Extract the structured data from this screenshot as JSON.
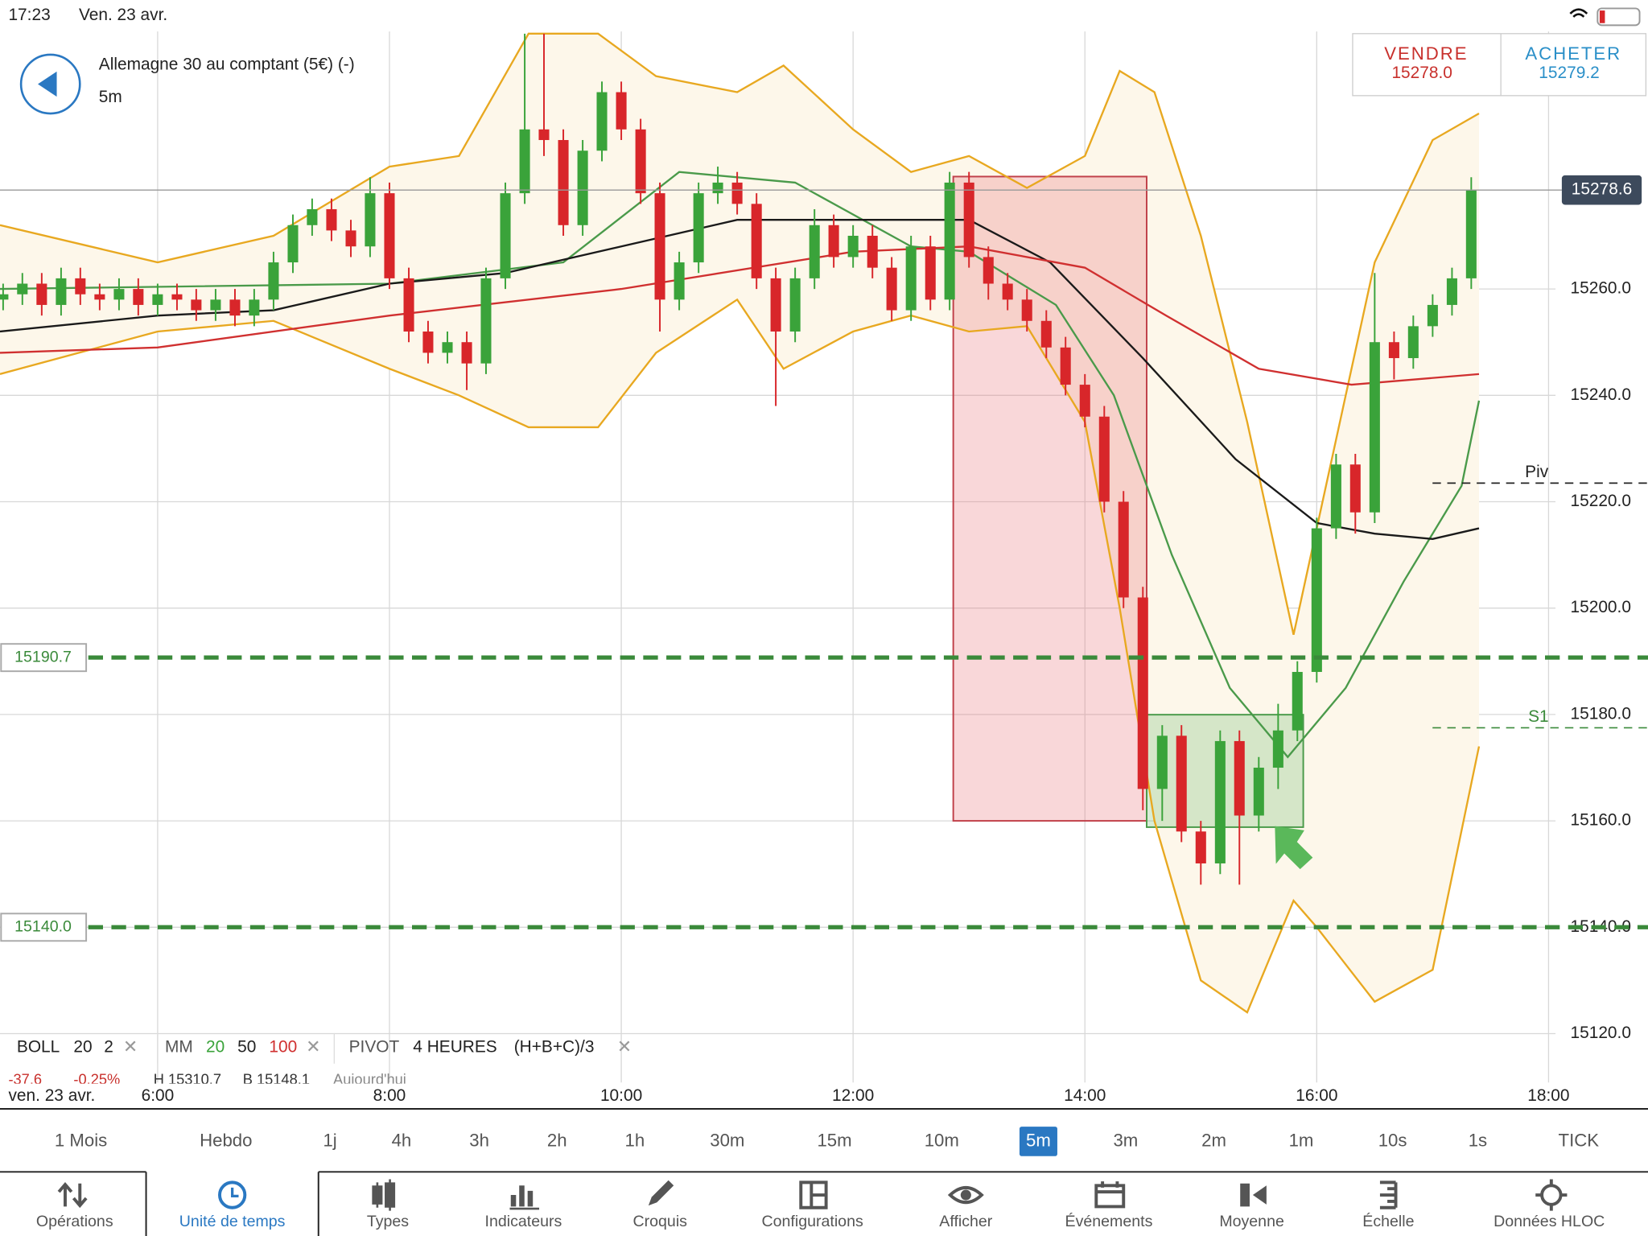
{
  "status_bar": {
    "time": "17:23",
    "date": "Ven. 23 avr."
  },
  "header": {
    "instrument": "Allemagne 30 au comptant (5€) (-)",
    "timeframe": "5m"
  },
  "quote": {
    "sell_label": "VENDRE",
    "sell_price": "15278.0",
    "buy_label": "ACHETER",
    "buy_price": "15279.2"
  },
  "chart_data": {
    "type": "candlestick",
    "x": [
      4.667,
      4.833,
      5,
      5.167,
      5.333,
      5.5,
      5.667,
      5.833,
      6,
      6.167,
      6.333,
      6.5,
      6.667,
      6.833,
      7,
      7.167,
      7.333,
      7.5,
      7.667,
      7.833,
      8,
      8.167,
      8.333,
      8.5,
      8.667,
      8.833,
      9,
      9.167,
      9.333,
      9.5,
      9.667,
      9.833,
      10,
      10.167,
      10.333,
      10.5,
      10.667,
      10.833,
      11,
      11.167,
      11.333,
      11.5,
      11.667,
      11.833,
      12,
      12.167,
      12.333,
      12.5,
      12.667,
      12.833,
      13,
      13.167,
      13.333,
      13.5,
      13.667,
      13.833,
      14,
      14.167,
      14.333,
      14.5,
      14.667,
      14.833,
      15,
      15.167,
      15.333,
      15.5,
      15.667,
      15.833,
      16,
      16.167,
      16.333,
      16.5,
      16.667,
      16.833,
      17,
      17.167,
      17.333
    ],
    "open": [
      15258,
      15259,
      15261,
      15257,
      15262,
      15259,
      15258,
      15260,
      15257,
      15259,
      15258,
      15256,
      15258,
      15255,
      15258,
      15265,
      15272,
      15275,
      15271,
      15268,
      15278,
      15262,
      15252,
      15248,
      15250,
      15246,
      15262,
      15278,
      15290,
      15288,
      15272,
      15286,
      15297,
      15290,
      15278,
      15258,
      15265,
      15278,
      15280,
      15276,
      15262,
      15252,
      15262,
      15272,
      15266,
      15270,
      15264,
      15256,
      15268,
      15258,
      15280,
      15266,
      15261,
      15258,
      15254,
      15249,
      15242,
      15236,
      15220,
      15202,
      15166,
      15176,
      15158,
      15152,
      15175,
      15161,
      15170,
      15177,
      15188,
      15215,
      15227,
      15218,
      15250,
      15247,
      15253,
      15257,
      15262
    ],
    "high": [
      15261,
      15263,
      15263,
      15264,
      15264,
      15261,
      15262,
      15262,
      15261,
      15261,
      15260,
      15260,
      15260,
      15260,
      15267,
      15274,
      15277,
      15277,
      15273,
      15281,
      15280,
      15264,
      15254,
      15252,
      15252,
      15264,
      15280,
      15308,
      15308,
      15290,
      15288,
      15299,
      15299,
      15292,
      15280,
      15267,
      15280,
      15283,
      15282,
      15278,
      15264,
      15264,
      15275,
      15274,
      15272,
      15272,
      15266,
      15270,
      15270,
      15282,
      15282,
      15268,
      15263,
      15260,
      15256,
      15251,
      15244,
      15238,
      15222,
      15204,
      15178,
      15178,
      15160,
      15177,
      15177,
      15172,
      15182,
      15190,
      15217,
      15229,
      15229,
      15263,
      15252,
      15255,
      15259,
      15264,
      15281
    ],
    "low": [
      15256,
      15257,
      15255,
      15255,
      15257,
      15256,
      15256,
      15255,
      15255,
      15256,
      15254,
      15254,
      15253,
      15253,
      15256,
      15263,
      15270,
      15269,
      15266,
      15266,
      15260,
      15250,
      15246,
      15246,
      15241,
      15244,
      15260,
      15276,
      15285,
      15270,
      15270,
      15284,
      15288,
      15276,
      15252,
      15256,
      15263,
      15276,
      15274,
      15260,
      15238,
      15250,
      15260,
      15264,
      15264,
      15262,
      15254,
      15254,
      15256,
      15256,
      15264,
      15258,
      15256,
      15252,
      15247,
      15240,
      15234,
      15218,
      15200,
      15162,
      15160,
      15156,
      15148,
      15150,
      15148,
      15158,
      15166,
      15175,
      15186,
      15213,
      15214,
      15216,
      15243,
      15245,
      15251,
      15255,
      15260
    ],
    "close": [
      15259,
      15261,
      15257,
      15262,
      15259,
      15258,
      15260,
      15257,
      15259,
      15258,
      15256,
      15258,
      15255,
      15258,
      15265,
      15272,
      15275,
      15271,
      15268,
      15278,
      15262,
      15252,
      15248,
      15250,
      15246,
      15262,
      15278,
      15290,
      15288,
      15272,
      15286,
      15297,
      15290,
      15278,
      15258,
      15265,
      15278,
      15280,
      15276,
      15262,
      15252,
      15262,
      15272,
      15266,
      15270,
      15264,
      15256,
      15268,
      15258,
      15280,
      15266,
      15261,
      15258,
      15254,
      15249,
      15242,
      15236,
      15220,
      15202,
      15166,
      15176,
      15158,
      15152,
      15175,
      15161,
      15170,
      15177,
      15188,
      15215,
      15227,
      15218,
      15250,
      15247,
      15253,
      15257,
      15262,
      15278.6
    ],
    "colors": {
      "up": "#3aa33a",
      "down": "#d8262a"
    },
    "xlim": [
      4.64,
      18.06
    ],
    "xticks": [
      {
        "value": 6,
        "label": "6:00"
      },
      {
        "value": 8,
        "label": "8:00"
      },
      {
        "value": 10,
        "label": "10:00"
      },
      {
        "value": 12,
        "label": "12:00"
      },
      {
        "value": 14,
        "label": "14:00"
      },
      {
        "value": 16,
        "label": "16:00"
      },
      {
        "value": 18,
        "label": "18:00"
      }
    ],
    "ylim": [
      15110.8,
      15308.4
    ],
    "yticks": [
      {
        "value": 15120,
        "label": "15120.0"
      },
      {
        "value": 15140,
        "label": "15140.0"
      },
      {
        "value": 15160,
        "label": "15160.0"
      },
      {
        "value": 15180,
        "label": "15180.0"
      },
      {
        "value": 15200,
        "label": "15200.0"
      },
      {
        "value": 15220,
        "label": "15220.0"
      },
      {
        "value": 15240,
        "label": "15240.0"
      },
      {
        "value": 15260,
        "label": "15260.0"
      }
    ],
    "grid": true,
    "bollinger": {
      "period": 20,
      "deviation": 2,
      "color": "#e8a820",
      "fill": "#fdf7ea",
      "x": [
        4.64,
        6,
        7,
        8,
        8.6,
        9.2,
        9.8,
        10.3,
        11,
        11.4,
        12,
        12.5,
        13,
        13.5,
        14,
        14.3,
        14.6,
        15,
        15.4,
        15.8,
        16,
        16.5,
        17,
        17.4
      ],
      "upper": [
        15272,
        15265,
        15270,
        15283,
        15285,
        15308,
        15308,
        15300,
        15297,
        15302,
        15290,
        15282,
        15285,
        15279,
        15285,
        15301,
        15297,
        15270,
        15235,
        15195,
        15215,
        15265,
        15288,
        15293
      ],
      "lower": [
        15244,
        15252,
        15254,
        15245,
        15240,
        15234,
        15234,
        15248,
        15258,
        15245,
        15252,
        15255,
        15252,
        15253,
        15235,
        15200,
        15160,
        15130,
        15124,
        15145,
        15140,
        15126,
        15132,
        15174
      ]
    },
    "moving_averages": [
      {
        "period": 20,
        "color": "#4a9a4a",
        "x": [
          4.64,
          8,
          9.5,
          10.5,
          11.5,
          12.5,
          13,
          13.75,
          14.25,
          14.75,
          15.25,
          15.75,
          16.25,
          16.75,
          17.25,
          17.4
        ],
        "values": [
          15260,
          15261,
          15265,
          15282,
          15280,
          15268,
          15267,
          15257,
          15240,
          15210,
          15185,
          15172,
          15185,
          15205,
          15223,
          15239
        ]
      },
      {
        "period": 50,
        "color": "#1a1a1a",
        "x": [
          4.64,
          6,
          7,
          8,
          9,
          10,
          11,
          12,
          13,
          13.7,
          14.5,
          15.3,
          16,
          16.5,
          17,
          17.4
        ],
        "values": [
          15252,
          15255,
          15256,
          15261,
          15263,
          15268,
          15273,
          15273,
          15273,
          15265,
          15247,
          15228,
          15216,
          15214,
          15213,
          15215
        ]
      },
      {
        "period": 100,
        "color": "#d03030",
        "x": [
          4.64,
          6,
          8,
          10,
          12,
          13,
          14,
          14.7,
          15.5,
          16.3,
          17.4
        ],
        "values": [
          15248,
          15249,
          15255,
          15260,
          15267,
          15268,
          15264,
          15255,
          15245,
          15242,
          15244
        ]
      }
    ],
    "levels": [
      {
        "value": 15190.7,
        "label": "15190.7"
      },
      {
        "value": 15140,
        "label": "15140.0"
      }
    ],
    "level_color": "#3a8a3a",
    "pivot": {
      "value": 15223.5,
      "label": "Piv"
    },
    "s1": {
      "value": 15177.5,
      "label": "S1"
    },
    "last_price": 15278.6,
    "date_label": "ven. 23 avr."
  },
  "indicator_legend": {
    "boll": "BOLL",
    "mm": "MM",
    "pivot": "PIVOT",
    "pivot_period": "4 HEURES",
    "pivot_formula": "(H+B+C)/3",
    "stats": [
      "-37.6",
      "-0.25%",
      "H 15310.7",
      "B 15148.1",
      "Aujourd'hui"
    ]
  },
  "timeframes": {
    "items": [
      "1 Mois",
      "Hebdo",
      "1j",
      "4h",
      "3h",
      "2h",
      "1h",
      "30m",
      "15m",
      "10m",
      "5m",
      "3m",
      "2m",
      "1m",
      "10s",
      "1s",
      "TICK"
    ],
    "selected": 10
  },
  "toolbar": {
    "items": [
      "Opérations",
      "Unité de temps",
      "Types",
      "Indicateurs",
      "Croquis",
      "Configurations",
      "Afficher",
      "Événements",
      "Moyenne",
      "Échelle",
      "Données HLOC"
    ],
    "selected": 1
  }
}
